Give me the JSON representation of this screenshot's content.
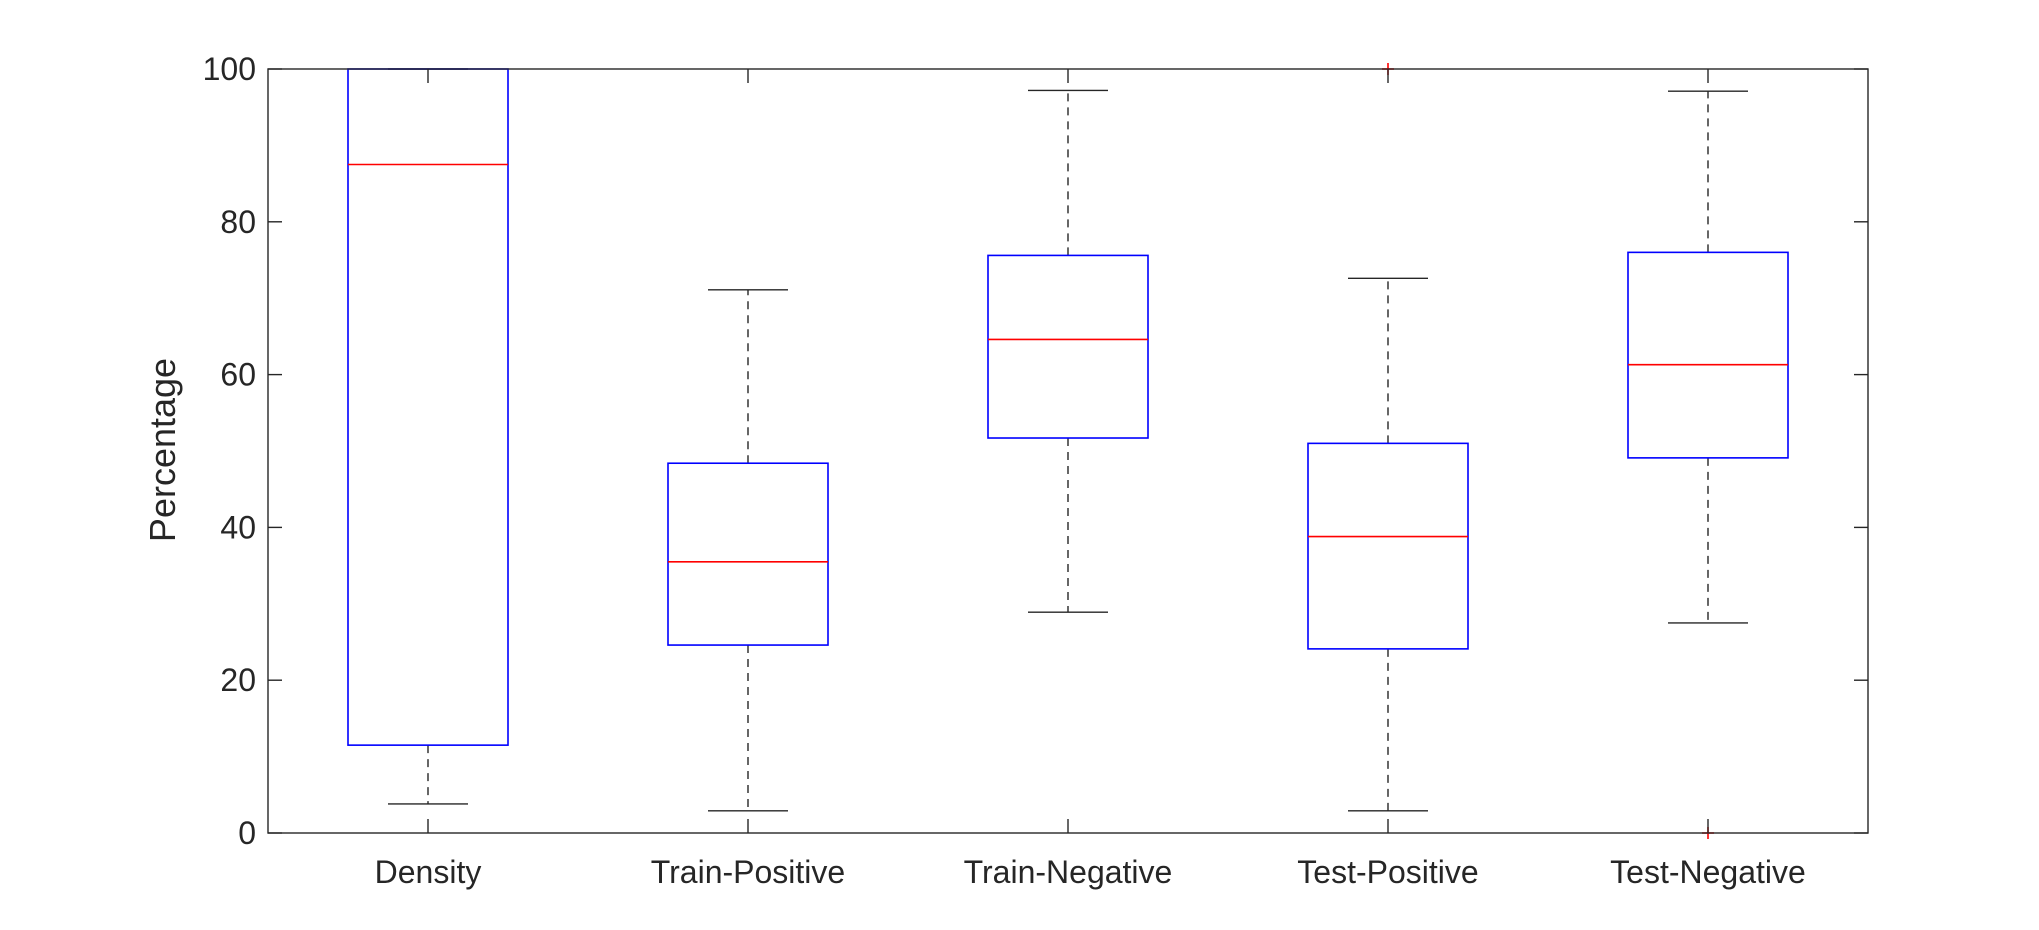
{
  "chart_data": {
    "type": "box",
    "title": "",
    "xlabel": "",
    "ylabel": "Percentage",
    "ylim": [
      0,
      100
    ],
    "yticks": [
      0,
      20,
      40,
      60,
      80,
      100
    ],
    "grid": false,
    "categories": [
      "Density",
      "Train-Positive",
      "Train-Negative",
      "Test-Positive",
      "Test-Negative"
    ],
    "boxes": [
      {
        "category": "Density",
        "whisker_low": 3.8,
        "q1": 11.5,
        "median": 87.5,
        "q3": 100,
        "whisker_high": 100,
        "outliers": []
      },
      {
        "category": "Train-Positive",
        "whisker_low": 2.9,
        "q1": 24.6,
        "median": 35.5,
        "q3": 48.4,
        "whisker_high": 71.1,
        "outliers": []
      },
      {
        "category": "Train-Negative",
        "whisker_low": 28.9,
        "q1": 51.7,
        "median": 64.6,
        "q3": 75.6,
        "whisker_high": 97.2,
        "outliers": []
      },
      {
        "category": "Test-Positive",
        "whisker_low": 2.9,
        "q1": 24.1,
        "median": 38.8,
        "q3": 51.0,
        "whisker_high": 72.6,
        "outliers": [
          100
        ]
      },
      {
        "category": "Test-Negative",
        "whisker_low": 27.5,
        "q1": 49.1,
        "median": 61.3,
        "q3": 76.0,
        "whisker_high": 97.1,
        "outliers": [
          0
        ]
      }
    ],
    "colors": {
      "box": "#0000ff",
      "median": "#ff0000",
      "whisker": "#262626",
      "outlier": "#ff0000",
      "axes": "#262626"
    }
  }
}
